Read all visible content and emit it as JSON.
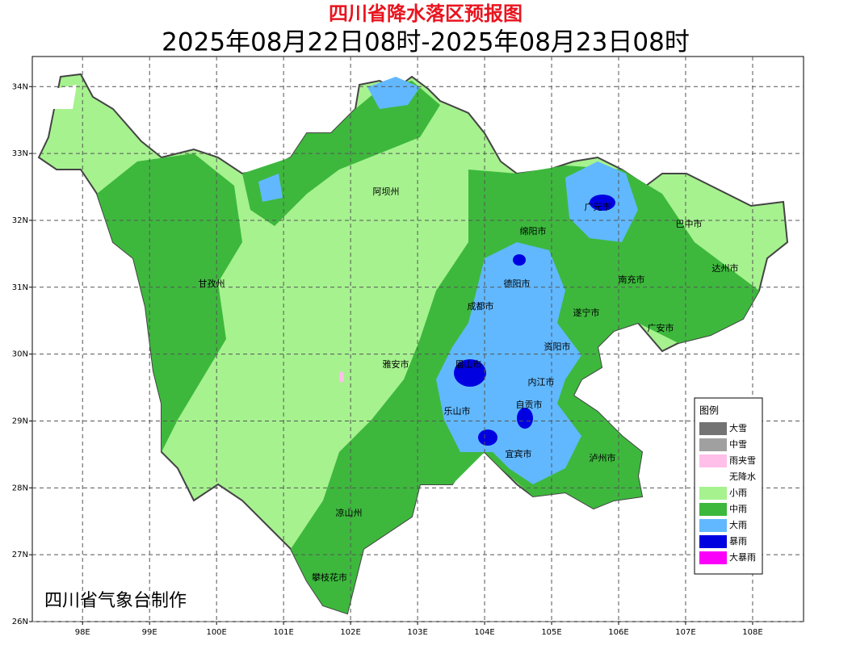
{
  "header": {
    "title": "四川省降水落区预报图",
    "subtitle": "2025年08月22日08时-2025年08月23日08时"
  },
  "map": {
    "xlim": [
      97.25,
      108.76
    ],
    "ylim": [
      26,
      34.45
    ],
    "xticks": [
      {
        "value": 98,
        "label": "98E"
      },
      {
        "value": 99,
        "label": "99E"
      },
      {
        "value": 100,
        "label": "100E"
      },
      {
        "value": 101,
        "label": "101E"
      },
      {
        "value": 102,
        "label": "102E"
      },
      {
        "value": 103,
        "label": "103E"
      },
      {
        "value": 104,
        "label": "104E"
      },
      {
        "value": 105,
        "label": "105E"
      },
      {
        "value": 106,
        "label": "106E"
      },
      {
        "value": 107,
        "label": "107E"
      },
      {
        "value": 108,
        "label": "108E"
      }
    ],
    "yticks": [
      {
        "value": 26,
        "label": "26N"
      },
      {
        "value": 27,
        "label": "27N"
      },
      {
        "value": 28,
        "label": "28N"
      },
      {
        "value": 29,
        "label": "29N"
      },
      {
        "value": 30,
        "label": "30N"
      },
      {
        "value": 31,
        "label": "31N"
      },
      {
        "value": 32,
        "label": "32N"
      },
      {
        "value": 33,
        "label": "33N"
      },
      {
        "value": 34,
        "label": "34N"
      }
    ],
    "grid": true,
    "cities": [
      "阿坝州",
      "甘孜州",
      "广元市",
      "巴中市",
      "绵阳市",
      "达州市",
      "南充市",
      "德阳市",
      "成都市",
      "遂宁市",
      "广安市",
      "资阳市",
      "雅安市",
      "眉山市",
      "内江市",
      "乐山市",
      "自贡市",
      "宜宾市",
      "泸州市",
      "凉山州",
      "攀枝花市"
    ],
    "credit": "四川省气象台制作"
  },
  "legend": {
    "title": "图例",
    "items": [
      {
        "name": "大雪",
        "color": "#737373"
      },
      {
        "name": "中雪",
        "color": "#a0a0a0"
      },
      {
        "name": "雨夹雪",
        "color": "#ffbfe8"
      },
      {
        "name": "无降水",
        "color": "#ffffff"
      },
      {
        "name": "小雨",
        "color": "#a6f28f"
      },
      {
        "name": "中雨",
        "color": "#3db83d"
      },
      {
        "name": "大雨",
        "color": "#61b8ff"
      },
      {
        "name": "暴雨",
        "color": "#0000e1"
      },
      {
        "name": "大暴雨",
        "color": "#fa00fa"
      }
    ]
  }
}
